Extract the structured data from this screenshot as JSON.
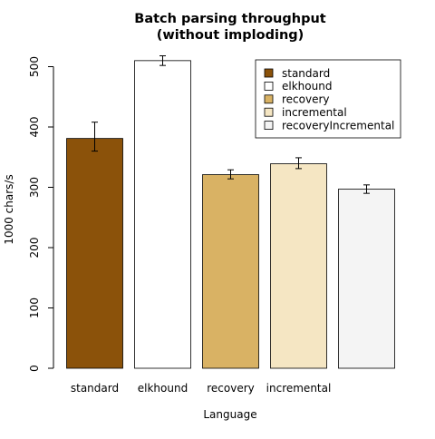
{
  "chart_data": {
    "type": "bar",
    "title": "Batch parsing throughput",
    "subtitle": "(without imploding)",
    "xlabel": "Language",
    "ylabel": "1000 chars/s",
    "ylim": [
      0,
      500
    ],
    "yticks": [
      0,
      100,
      200,
      300,
      400,
      500
    ],
    "categories": [
      "standard",
      "elkhound",
      "recovery",
      "incremental",
      ""
    ],
    "values": [
      381,
      510,
      321,
      339,
      297
    ],
    "errors": [
      {
        "low": 360,
        "high": 408
      },
      {
        "low": 502,
        "high": 518
      },
      {
        "low": 314,
        "high": 329
      },
      {
        "low": 331,
        "high": 349
      },
      {
        "low": 290,
        "high": 304
      }
    ],
    "colors": [
      "#8B520A",
      "#FFFFFF",
      "#D9B264",
      "#F5E6C3",
      "#F4F4F4"
    ],
    "grid": false,
    "legend": {
      "position": "top-right",
      "entries": [
        "standard",
        "elkhound",
        "recovery",
        "incremental",
        "recoveryIncremental"
      ]
    }
  }
}
